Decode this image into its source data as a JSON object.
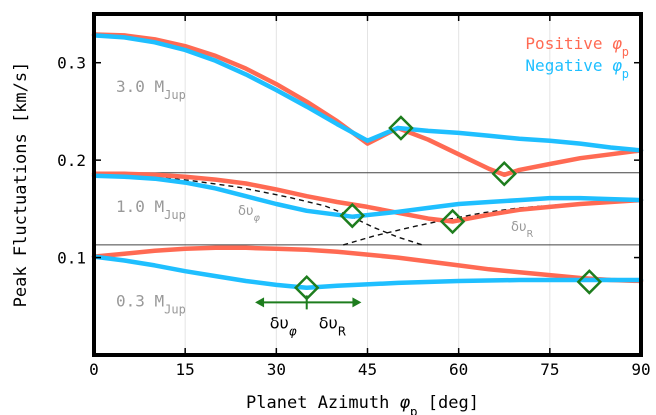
{
  "chart_data": {
    "type": "line",
    "title": "",
    "xlabel": {
      "prefix": "Planet Azimuth ",
      "symbol": "φ",
      "sub": "p",
      "suffix": " [deg]"
    },
    "ylabel": "Peak Fluctuations [km/s]",
    "xlim": [
      0,
      90
    ],
    "ylim": [
      0.0,
      0.35
    ],
    "xticks": [
      0,
      15,
      30,
      45,
      60,
      75,
      90
    ],
    "yticks": [
      0.1,
      0.2,
      0.3
    ],
    "ytick_labels": [
      "0.1",
      "0.2",
      "0.3"
    ],
    "grid": "vertical",
    "legend": {
      "placement": "top-right",
      "entries": [
        {
          "prefix": "Positive ",
          "symbol": "φ",
          "sub": "p",
          "color": "#ff6a53"
        },
        {
          "prefix": "Negative ",
          "symbol": "φ",
          "sub": "p",
          "color": "#1fbfff"
        }
      ]
    },
    "colors": {
      "positive": "#ff6a53",
      "negative": "#1fbfff",
      "marker": "#1e7d1e",
      "label_gray": "#999999"
    },
    "hlines": [
      0.187,
      0.113
    ],
    "panel_labels": [
      {
        "text": "3.0 M",
        "sub": "Jup",
        "y": 0.27
      },
      {
        "text": "1.0 M",
        "sub": "Jup",
        "y": 0.147
      },
      {
        "text": "0.3 M",
        "sub": "Jup",
        "y": 0.05
      }
    ],
    "series": [
      {
        "group": "3.0",
        "sign": "positive",
        "x": [
          0,
          5,
          10,
          15,
          20,
          25,
          30,
          35,
          40,
          45,
          50,
          55,
          60,
          65,
          67.5,
          70,
          75,
          80,
          85,
          90
        ],
        "y": [
          0.329,
          0.328,
          0.324,
          0.317,
          0.307,
          0.294,
          0.278,
          0.26,
          0.24,
          0.217,
          0.233,
          0.221,
          0.206,
          0.191,
          0.185,
          0.19,
          0.196,
          0.202,
          0.206,
          0.21
        ]
      },
      {
        "group": "3.0",
        "sign": "negative",
        "x": [
          0,
          5,
          10,
          15,
          20,
          25,
          30,
          35,
          40,
          45,
          50,
          55,
          60,
          65,
          70,
          75,
          80,
          85,
          90
        ],
        "y": [
          0.328,
          0.326,
          0.321,
          0.313,
          0.302,
          0.288,
          0.272,
          0.255,
          0.237,
          0.22,
          0.233,
          0.23,
          0.228,
          0.225,
          0.222,
          0.22,
          0.217,
          0.213,
          0.21
        ]
      },
      {
        "group": "1.0",
        "sign": "positive",
        "x": [
          0,
          5,
          10,
          15,
          20,
          25,
          30,
          35,
          40,
          45,
          50,
          55,
          59,
          65,
          70,
          75,
          80,
          85,
          90
        ],
        "y": [
          0.186,
          0.186,
          0.185,
          0.183,
          0.18,
          0.176,
          0.17,
          0.163,
          0.157,
          0.152,
          0.146,
          0.14,
          0.137,
          0.144,
          0.149,
          0.152,
          0.155,
          0.157,
          0.159
        ]
      },
      {
        "group": "1.0",
        "sign": "negative",
        "x": [
          0,
          5,
          10,
          15,
          20,
          25,
          30,
          35,
          42.5,
          50,
          55,
          60,
          65,
          70,
          75,
          80,
          85,
          90
        ],
        "y": [
          0.184,
          0.183,
          0.181,
          0.177,
          0.171,
          0.163,
          0.155,
          0.148,
          0.142,
          0.147,
          0.151,
          0.155,
          0.157,
          0.159,
          0.161,
          0.161,
          0.16,
          0.159
        ]
      },
      {
        "group": "0.3",
        "sign": "positive",
        "x": [
          0,
          5,
          10,
          15,
          20,
          25,
          30,
          35,
          40,
          45,
          50,
          55,
          60,
          65,
          70,
          75,
          80,
          85,
          90
        ],
        "y": [
          0.101,
          0.104,
          0.107,
          0.109,
          0.11,
          0.11,
          0.109,
          0.108,
          0.106,
          0.103,
          0.1,
          0.096,
          0.092,
          0.088,
          0.085,
          0.082,
          0.079,
          0.077,
          0.076
        ]
      },
      {
        "group": "0.3",
        "sign": "negative",
        "x": [
          0,
          5,
          10,
          15,
          20,
          25,
          30,
          35,
          40,
          50,
          60,
          70,
          80,
          90
        ],
        "y": [
          0.101,
          0.097,
          0.092,
          0.086,
          0.081,
          0.076,
          0.072,
          0.069,
          0.071,
          0.074,
          0.076,
          0.077,
          0.077,
          0.077
        ]
      }
    ],
    "dashed_curves": [
      {
        "label": "δυ",
        "sub": "φ",
        "x": [
          0,
          8,
          16,
          24,
          32,
          38,
          42,
          46,
          50,
          54
        ],
        "y": [
          0.186,
          0.184,
          0.179,
          0.172,
          0.162,
          0.153,
          0.143,
          0.131,
          0.121,
          0.113
        ]
      },
      {
        "label": "δυ",
        "sub": "R",
        "x": [
          41,
          46,
          52,
          58,
          64,
          70,
          76,
          82,
          88,
          90
        ],
        "y": [
          0.113,
          0.122,
          0.131,
          0.139,
          0.146,
          0.151,
          0.154,
          0.156,
          0.158,
          0.158
        ]
      }
    ],
    "markers": [
      {
        "x": 50.5,
        "y": 0.233
      },
      {
        "x": 67.5,
        "y": 0.186
      },
      {
        "x": 42.5,
        "y": 0.143
      },
      {
        "x": 59,
        "y": 0.137
      },
      {
        "x": 35,
        "y": 0.069
      },
      {
        "x": 81.5,
        "y": 0.075
      }
    ],
    "arrow_annotation": {
      "x_center": 35,
      "x_left": 26.5,
      "x_right": 44,
      "y": 0.054,
      "left_label": "δυ",
      "left_sub": "φ",
      "right_label": "δυ",
      "right_sub": "R"
    }
  }
}
